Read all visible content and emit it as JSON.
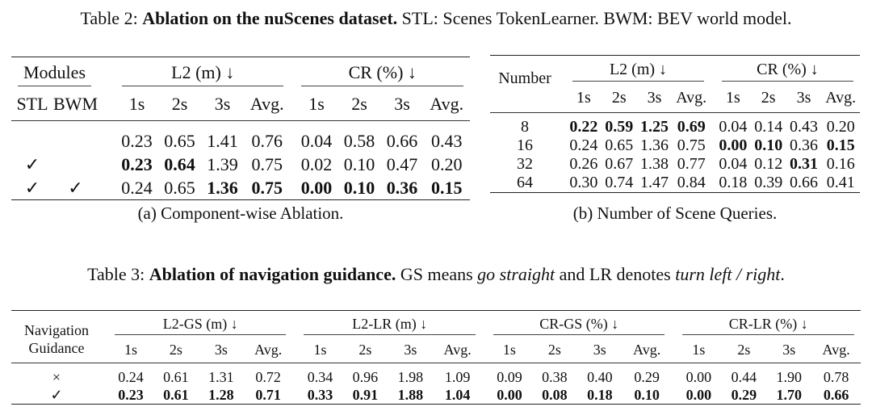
{
  "table2": {
    "caption_label": "Table 2:",
    "caption_bold": "Ablation on the nuScenes dataset.",
    "caption_rest": "STL: Scenes TokenLearner. BWM: BEV world model."
  },
  "t2a": {
    "header_modules": "Modules",
    "header_l2": "L2 (m) ↓",
    "header_cr": "CR (%) ↓",
    "sub_stl": "STL",
    "sub_bwm": "BWM",
    "sub_cols": [
      "1s",
      "2s",
      "3s",
      "Avg.",
      "1s",
      "2s",
      "3s",
      "Avg."
    ],
    "rows": [
      {
        "stl": "",
        "bwm": "",
        "v": [
          "0.23",
          "0.65",
          "1.41",
          "0.76",
          "0.04",
          "0.58",
          "0.66",
          "0.43"
        ]
      },
      {
        "stl": "✓",
        "bwm": "",
        "v": [
          "0.23",
          "0.64",
          "1.39",
          "0.75",
          "0.02",
          "0.10",
          "0.47",
          "0.20"
        ]
      },
      {
        "stl": "✓",
        "bwm": "✓",
        "v": [
          "0.24",
          "0.65",
          "1.36",
          "0.75",
          "0.00",
          "0.10",
          "0.36",
          "0.15"
        ]
      }
    ],
    "subcaption": "(a) Component-wise Ablation."
  },
  "t2b": {
    "header_number": "Number",
    "header_l2": "L2 (m) ↓",
    "header_cr": "CR (%) ↓",
    "sub_cols": [
      "1s",
      "2s",
      "3s",
      "Avg.",
      "1s",
      "2s",
      "3s",
      "Avg."
    ],
    "rows": [
      {
        "n": "8",
        "v": [
          "0.22",
          "0.59",
          "1.25",
          "0.69",
          "0.04",
          "0.14",
          "0.43",
          "0.20"
        ]
      },
      {
        "n": "16",
        "v": [
          "0.24",
          "0.65",
          "1.36",
          "0.75",
          "0.00",
          "0.10",
          "0.36",
          "0.15"
        ]
      },
      {
        "n": "32",
        "v": [
          "0.26",
          "0.67",
          "1.38",
          "0.77",
          "0.04",
          "0.12",
          "0.31",
          "0.16"
        ]
      },
      {
        "n": "64",
        "v": [
          "0.30",
          "0.74",
          "1.47",
          "0.84",
          "0.18",
          "0.39",
          "0.66",
          "0.41"
        ]
      }
    ],
    "subcaption": "(b) Number of Scene Queries."
  },
  "table3": {
    "caption_label": "Table 3:",
    "caption_bold": "Ablation of navigation guidance.",
    "caption_pre": "GS means",
    "caption_gs": "go straight",
    "caption_mid": "and LR denotes",
    "caption_lr": "turn left / right",
    "caption_end": ".",
    "header_nav1": "Navigation",
    "header_nav2": "Guidance",
    "groups": [
      "L2-GS (m) ↓",
      "L2-LR (m) ↓",
      "CR-GS (%) ↓",
      "CR-LR (%) ↓"
    ],
    "sub_cols": [
      "1s",
      "2s",
      "3s",
      "Avg.",
      "1s",
      "2s",
      "3s",
      "Avg.",
      "1s",
      "2s",
      "3s",
      "Avg.",
      "1s",
      "2s",
      "3s",
      "Avg."
    ],
    "rows": [
      {
        "g": "×",
        "v": [
          "0.24",
          "0.61",
          "1.31",
          "0.72",
          "0.34",
          "0.96",
          "1.98",
          "1.09",
          "0.09",
          "0.38",
          "0.40",
          "0.29",
          "0.00",
          "0.44",
          "1.90",
          "0.78"
        ]
      },
      {
        "g": "✓",
        "v": [
          "0.23",
          "0.61",
          "1.28",
          "0.71",
          "0.33",
          "0.91",
          "1.88",
          "1.04",
          "0.00",
          "0.08",
          "0.18",
          "0.10",
          "0.00",
          "0.29",
          "1.70",
          "0.66"
        ]
      }
    ]
  }
}
